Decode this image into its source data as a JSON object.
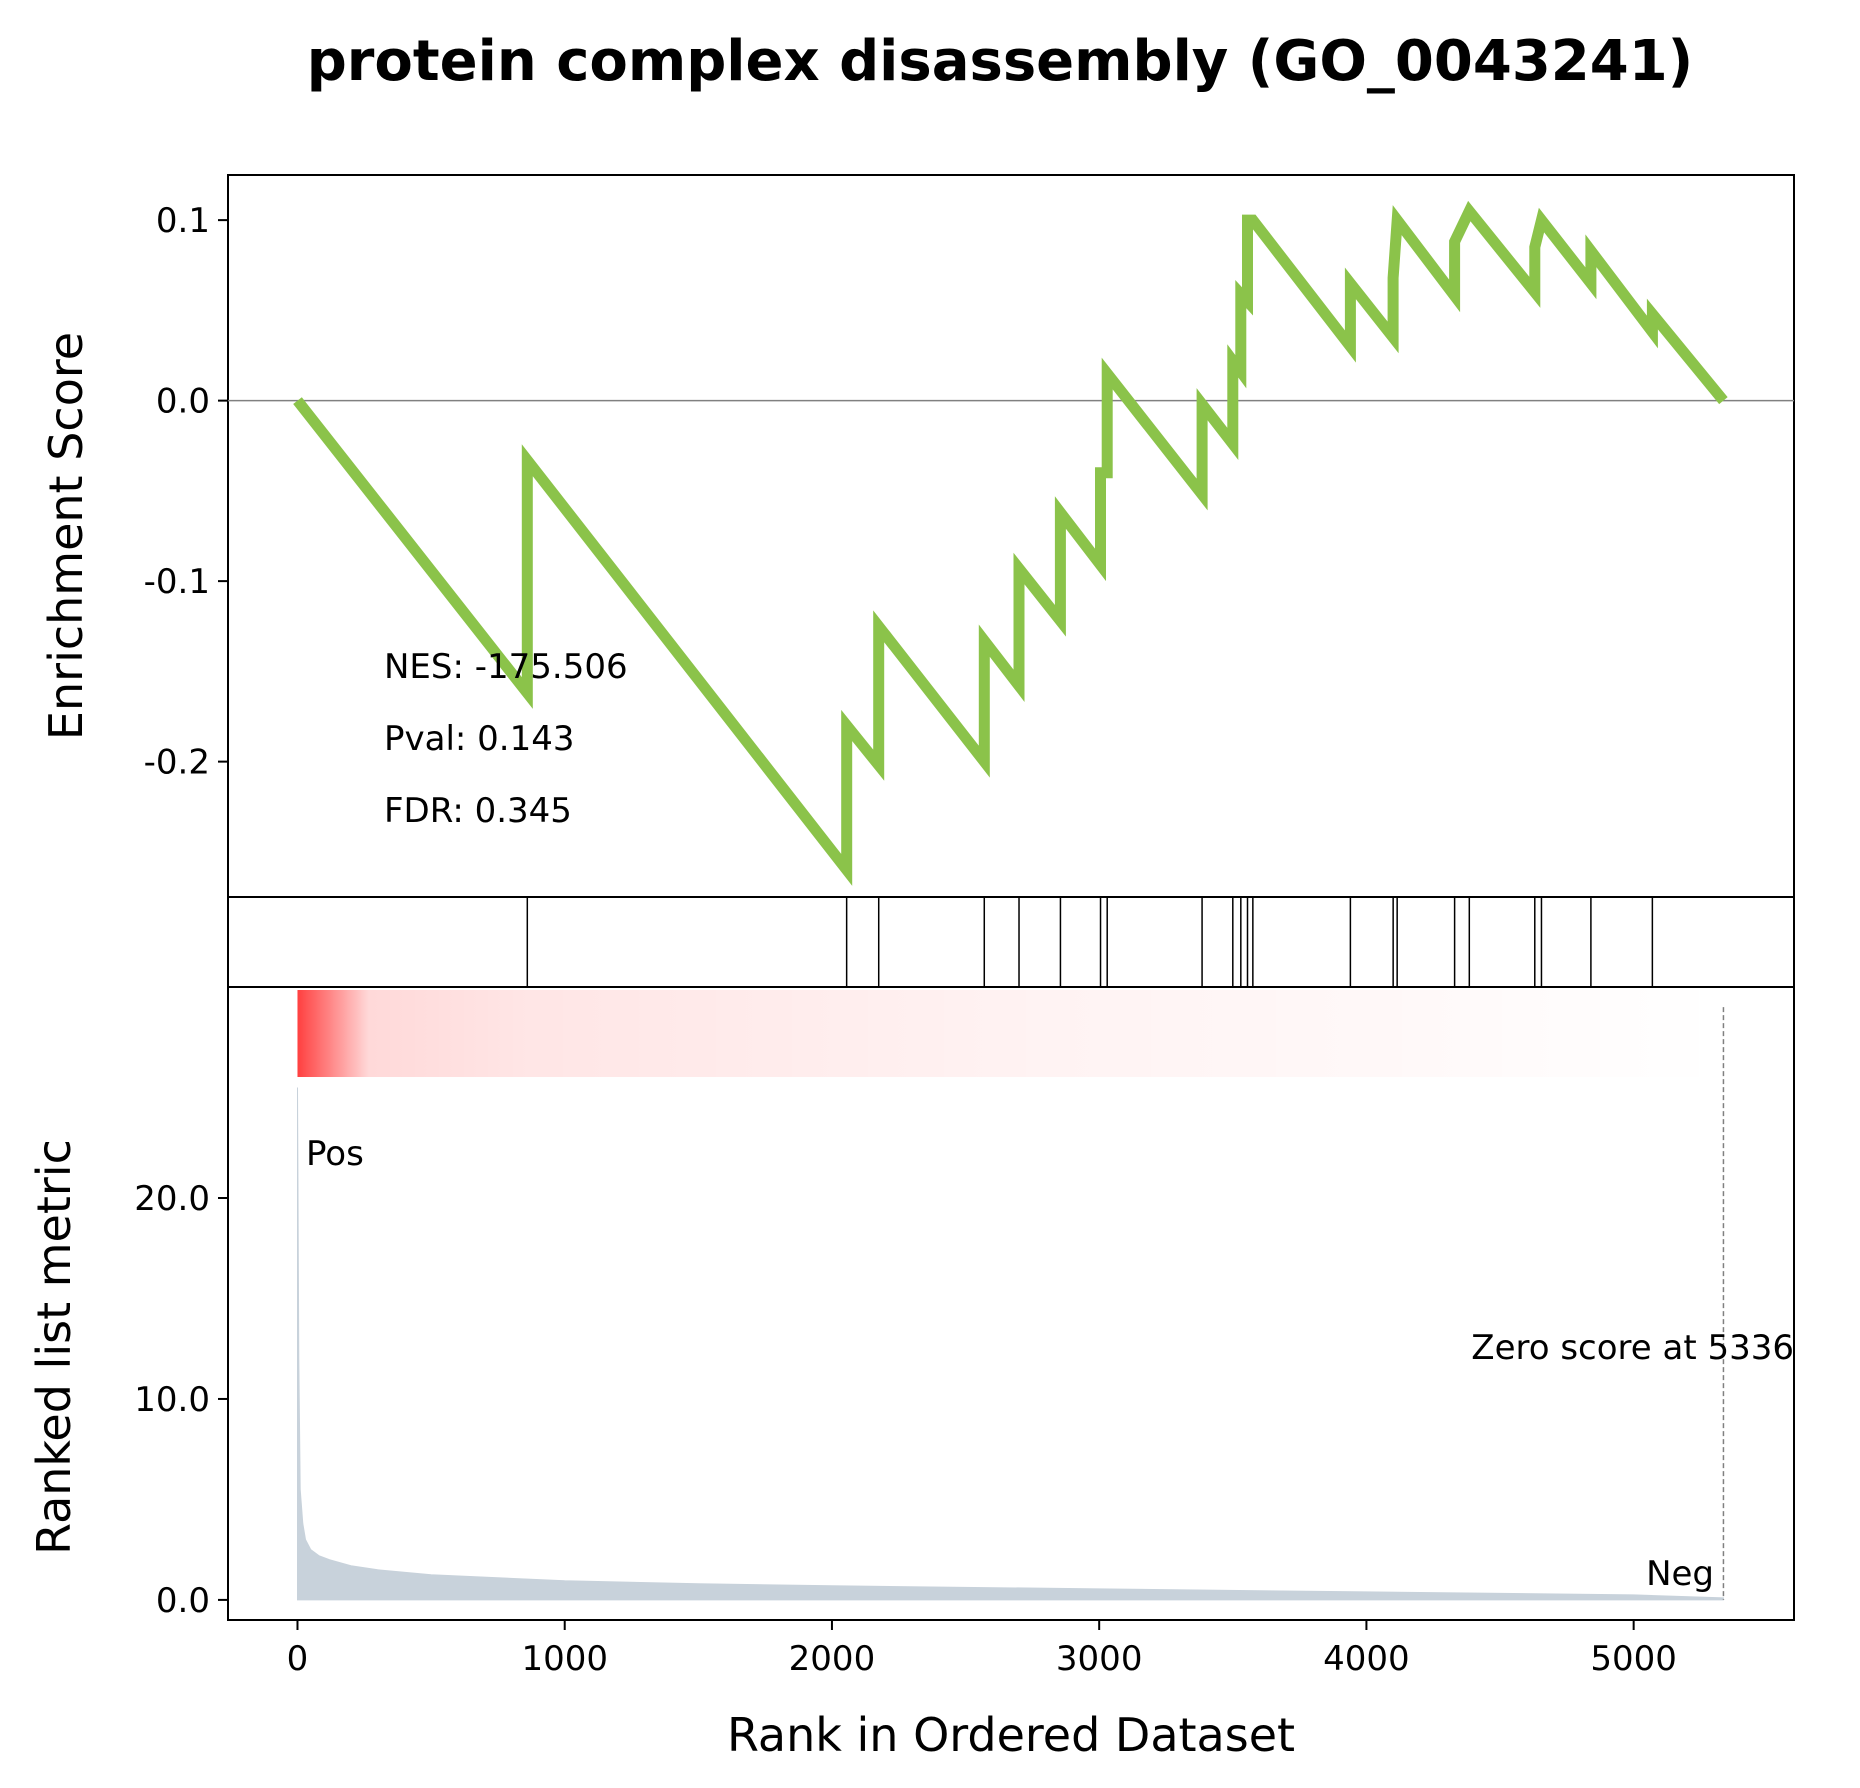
{
  "chart_data": {
    "type": "line",
    "title": "protein complex disassembly (GO_0043241)",
    "xlabel": "Rank in Ordered Dataset",
    "xlim": [
      -260,
      5600
    ],
    "x_ticks": [
      "0",
      "1000",
      "2000",
      "3000",
      "4000",
      "5000"
    ],
    "enrichment_panel": {
      "ylabel": "Enrichment Score",
      "ylim": [
        -0.275,
        0.125
      ],
      "y_ticks": [
        "0.1",
        "0.0",
        "-0.1",
        "-0.2"
      ],
      "line_color": "#8bc34a",
      "series": [
        {
          "x": [
            0,
            860,
            860,
            2055,
            2055,
            2175,
            2175,
            2570,
            2570,
            2700,
            2700,
            2855,
            2855,
            3005,
            3005,
            3030,
            3030,
            3385,
            3385,
            3500,
            3500,
            3530,
            3530,
            3555,
            3555,
            3575,
            3575,
            3940,
            3940,
            4100,
            4100,
            4115,
            4115,
            4330,
            4330,
            4385,
            4385,
            4630,
            4630,
            4655,
            4655,
            4840,
            4840,
            5070,
            5070,
            5336
          ],
          "y": [
            0.0,
            -0.162,
            -0.033,
            -0.26,
            -0.18,
            -0.202,
            -0.125,
            -0.2,
            -0.133,
            -0.158,
            -0.093,
            -0.122,
            -0.062,
            -0.091,
            -0.04,
            -0.04,
            0.015,
            -0.052,
            -0.002,
            -0.024,
            0.022,
            0.016,
            0.059,
            0.055,
            0.1,
            0.1,
            0.1,
            0.03,
            0.065,
            0.035,
            0.068,
            0.1,
            0.1,
            0.058,
            0.088,
            0.105,
            0.105,
            0.06,
            0.085,
            0.1,
            0.1,
            0.065,
            0.083,
            0.038,
            0.048,
            0.0
          ]
        }
      ],
      "stats": {
        "nes": "NES: -175.506",
        "pval": "Pval: 0.143",
        "fdr": "FDR: 0.345"
      }
    },
    "hits_panel": {
      "hit_ranks": [
        860,
        2055,
        2175,
        2570,
        2700,
        2855,
        3005,
        3030,
        3385,
        3500,
        3530,
        3555,
        3575,
        3940,
        4100,
        4115,
        4330,
        4385,
        4630,
        4655,
        4840,
        5070
      ]
    },
    "ranked_metric_panel": {
      "ylabel": "Ranked list metric",
      "ylim": [
        -1,
        30.5
      ],
      "y_ticks": [
        "0.0",
        "10.0",
        "20.0"
      ],
      "fill_color": "#c8d2db",
      "x": [
        0,
        5,
        10,
        20,
        30,
        50,
        80,
        120,
        200,
        300,
        500,
        1000,
        1500,
        2000,
        3000,
        4000,
        5000,
        5336
      ],
      "values": [
        25.5,
        12.0,
        5.5,
        3.8,
        3.0,
        2.5,
        2.2,
        2.0,
        1.7,
        1.5,
        1.25,
        0.95,
        0.8,
        0.7,
        0.55,
        0.4,
        0.25,
        0.1
      ],
      "heat_band_color": "#ff0000",
      "pos_label": "Pos",
      "neg_label": "Neg",
      "pos_color": "#ff0000",
      "neg_color": "#0000ff",
      "zero_score_label": "Zero score at 5336",
      "zero_score_rank": 5336
    }
  }
}
